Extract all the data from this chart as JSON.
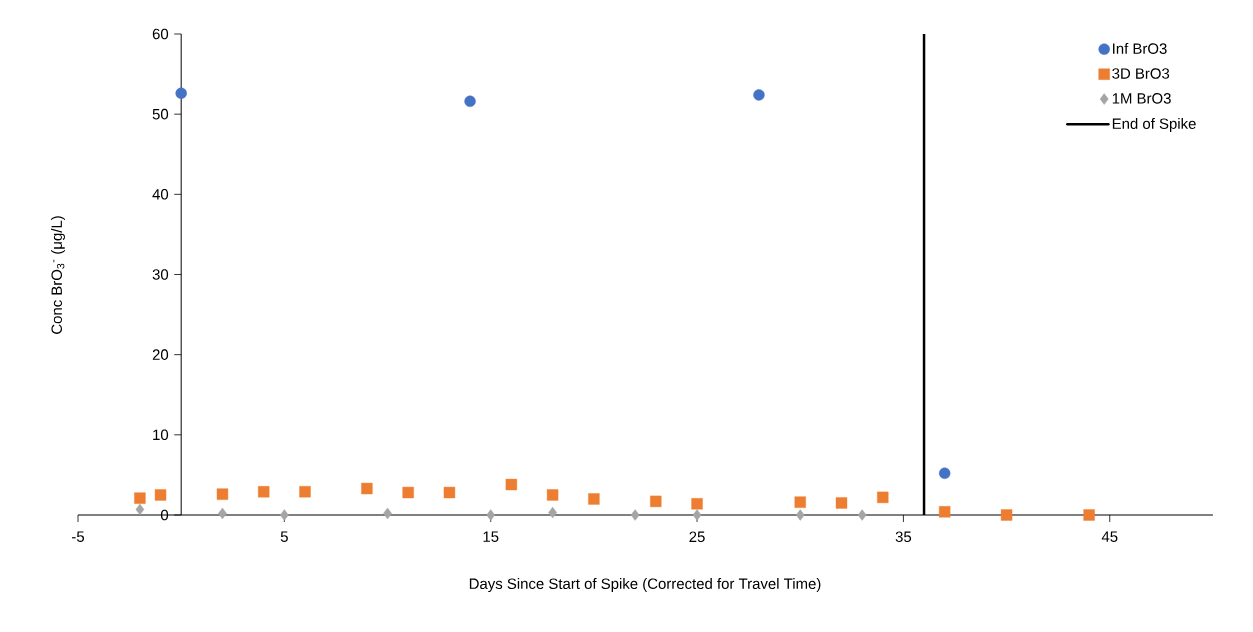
{
  "chart_data": {
    "type": "scatter",
    "xlabel": "Days Since Start of Spike (Corrected for Travel Time)",
    "ylabel": "Conc BrO$_{3}$$^{-}$ (μg/L)",
    "xlim": [
      -5,
      50
    ],
    "ylim": [
      0,
      60
    ],
    "xticks": [
      -5,
      5,
      15,
      25,
      35,
      45
    ],
    "yticks": [
      0,
      10,
      20,
      30,
      40,
      50,
      60
    ],
    "grid": false,
    "legend": "top right",
    "series": [
      {
        "name": "Inf BrO3",
        "color": "#4472c4",
        "marker": "circle",
        "x": [
          0,
          14,
          28,
          37
        ],
        "values": [
          52.6,
          51.6,
          52.4,
          5.2
        ]
      },
      {
        "name": "3D BrO3",
        "color": "#ed7d31",
        "marker": "square",
        "x": [
          -2,
          -1,
          2,
          4,
          6,
          9,
          11,
          13,
          16,
          18,
          20,
          23,
          25,
          30,
          32,
          34,
          37,
          40,
          44
        ],
        "values": [
          2.1,
          2.5,
          2.6,
          2.9,
          2.9,
          3.3,
          2.8,
          2.8,
          3.8,
          2.5,
          2.0,
          1.7,
          1.4,
          1.6,
          1.5,
          2.2,
          0.4,
          0,
          0
        ]
      },
      {
        "name": "1M BrO3",
        "color": "#a5a5a5",
        "marker": "diamond",
        "x": [
          -2,
          2,
          5,
          10,
          15,
          18,
          22,
          25,
          30,
          33
        ],
        "values": [
          0.7,
          0.2,
          0,
          0.2,
          0,
          0.3,
          0,
          0,
          0,
          0
        ]
      },
      {
        "name": "End of Spike",
        "type": "line",
        "color": "#000000",
        "marker": "none",
        "line_style": "solid",
        "x": [
          36,
          36
        ],
        "values": [
          0,
          60
        ]
      }
    ]
  }
}
